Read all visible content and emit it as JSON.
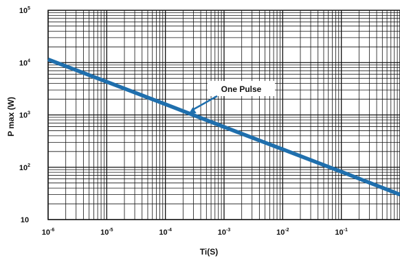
{
  "chart_data": {
    "type": "line",
    "title": "",
    "xlabel": "Ti(S)",
    "ylabel": "P max (W)",
    "x_scale": "log",
    "y_scale": "log",
    "xlim": [
      1e-06,
      1
    ],
    "ylim": [
      10,
      100000
    ],
    "grid": true,
    "x_ticks": [
      {
        "value": 1e-06,
        "base": "10",
        "exp": "-6"
      },
      {
        "value": 1e-05,
        "base": "10",
        "exp": "-5"
      },
      {
        "value": 0.0001,
        "base": "10",
        "exp": "-4"
      },
      {
        "value": 0.001,
        "base": "10",
        "exp": "-3"
      },
      {
        "value": 0.01,
        "base": "10",
        "exp": "-2"
      },
      {
        "value": 0.1,
        "base": "10",
        "exp": "-1"
      }
    ],
    "y_ticks": [
      {
        "value": 10,
        "base": "10",
        "exp": ""
      },
      {
        "value": 100,
        "base": "10",
        "exp": "2"
      },
      {
        "value": 1000,
        "base": "10",
        "exp": "3"
      },
      {
        "value": 10000,
        "base": "10",
        "exp": "4"
      },
      {
        "value": 100000,
        "base": "10",
        "exp": "5"
      }
    ],
    "series": [
      {
        "color": "#1f6fad",
        "x": [
          1e-06,
          1e-05,
          0.0001,
          0.001,
          0.01,
          0.1,
          1
        ],
        "y": [
          11500,
          4300,
          1600,
          590,
          220,
          82,
          30
        ]
      }
    ],
    "annotations": [
      {
        "text": "One Pulse",
        "target_x": 0.00025,
        "target_y": 1050
      }
    ]
  }
}
